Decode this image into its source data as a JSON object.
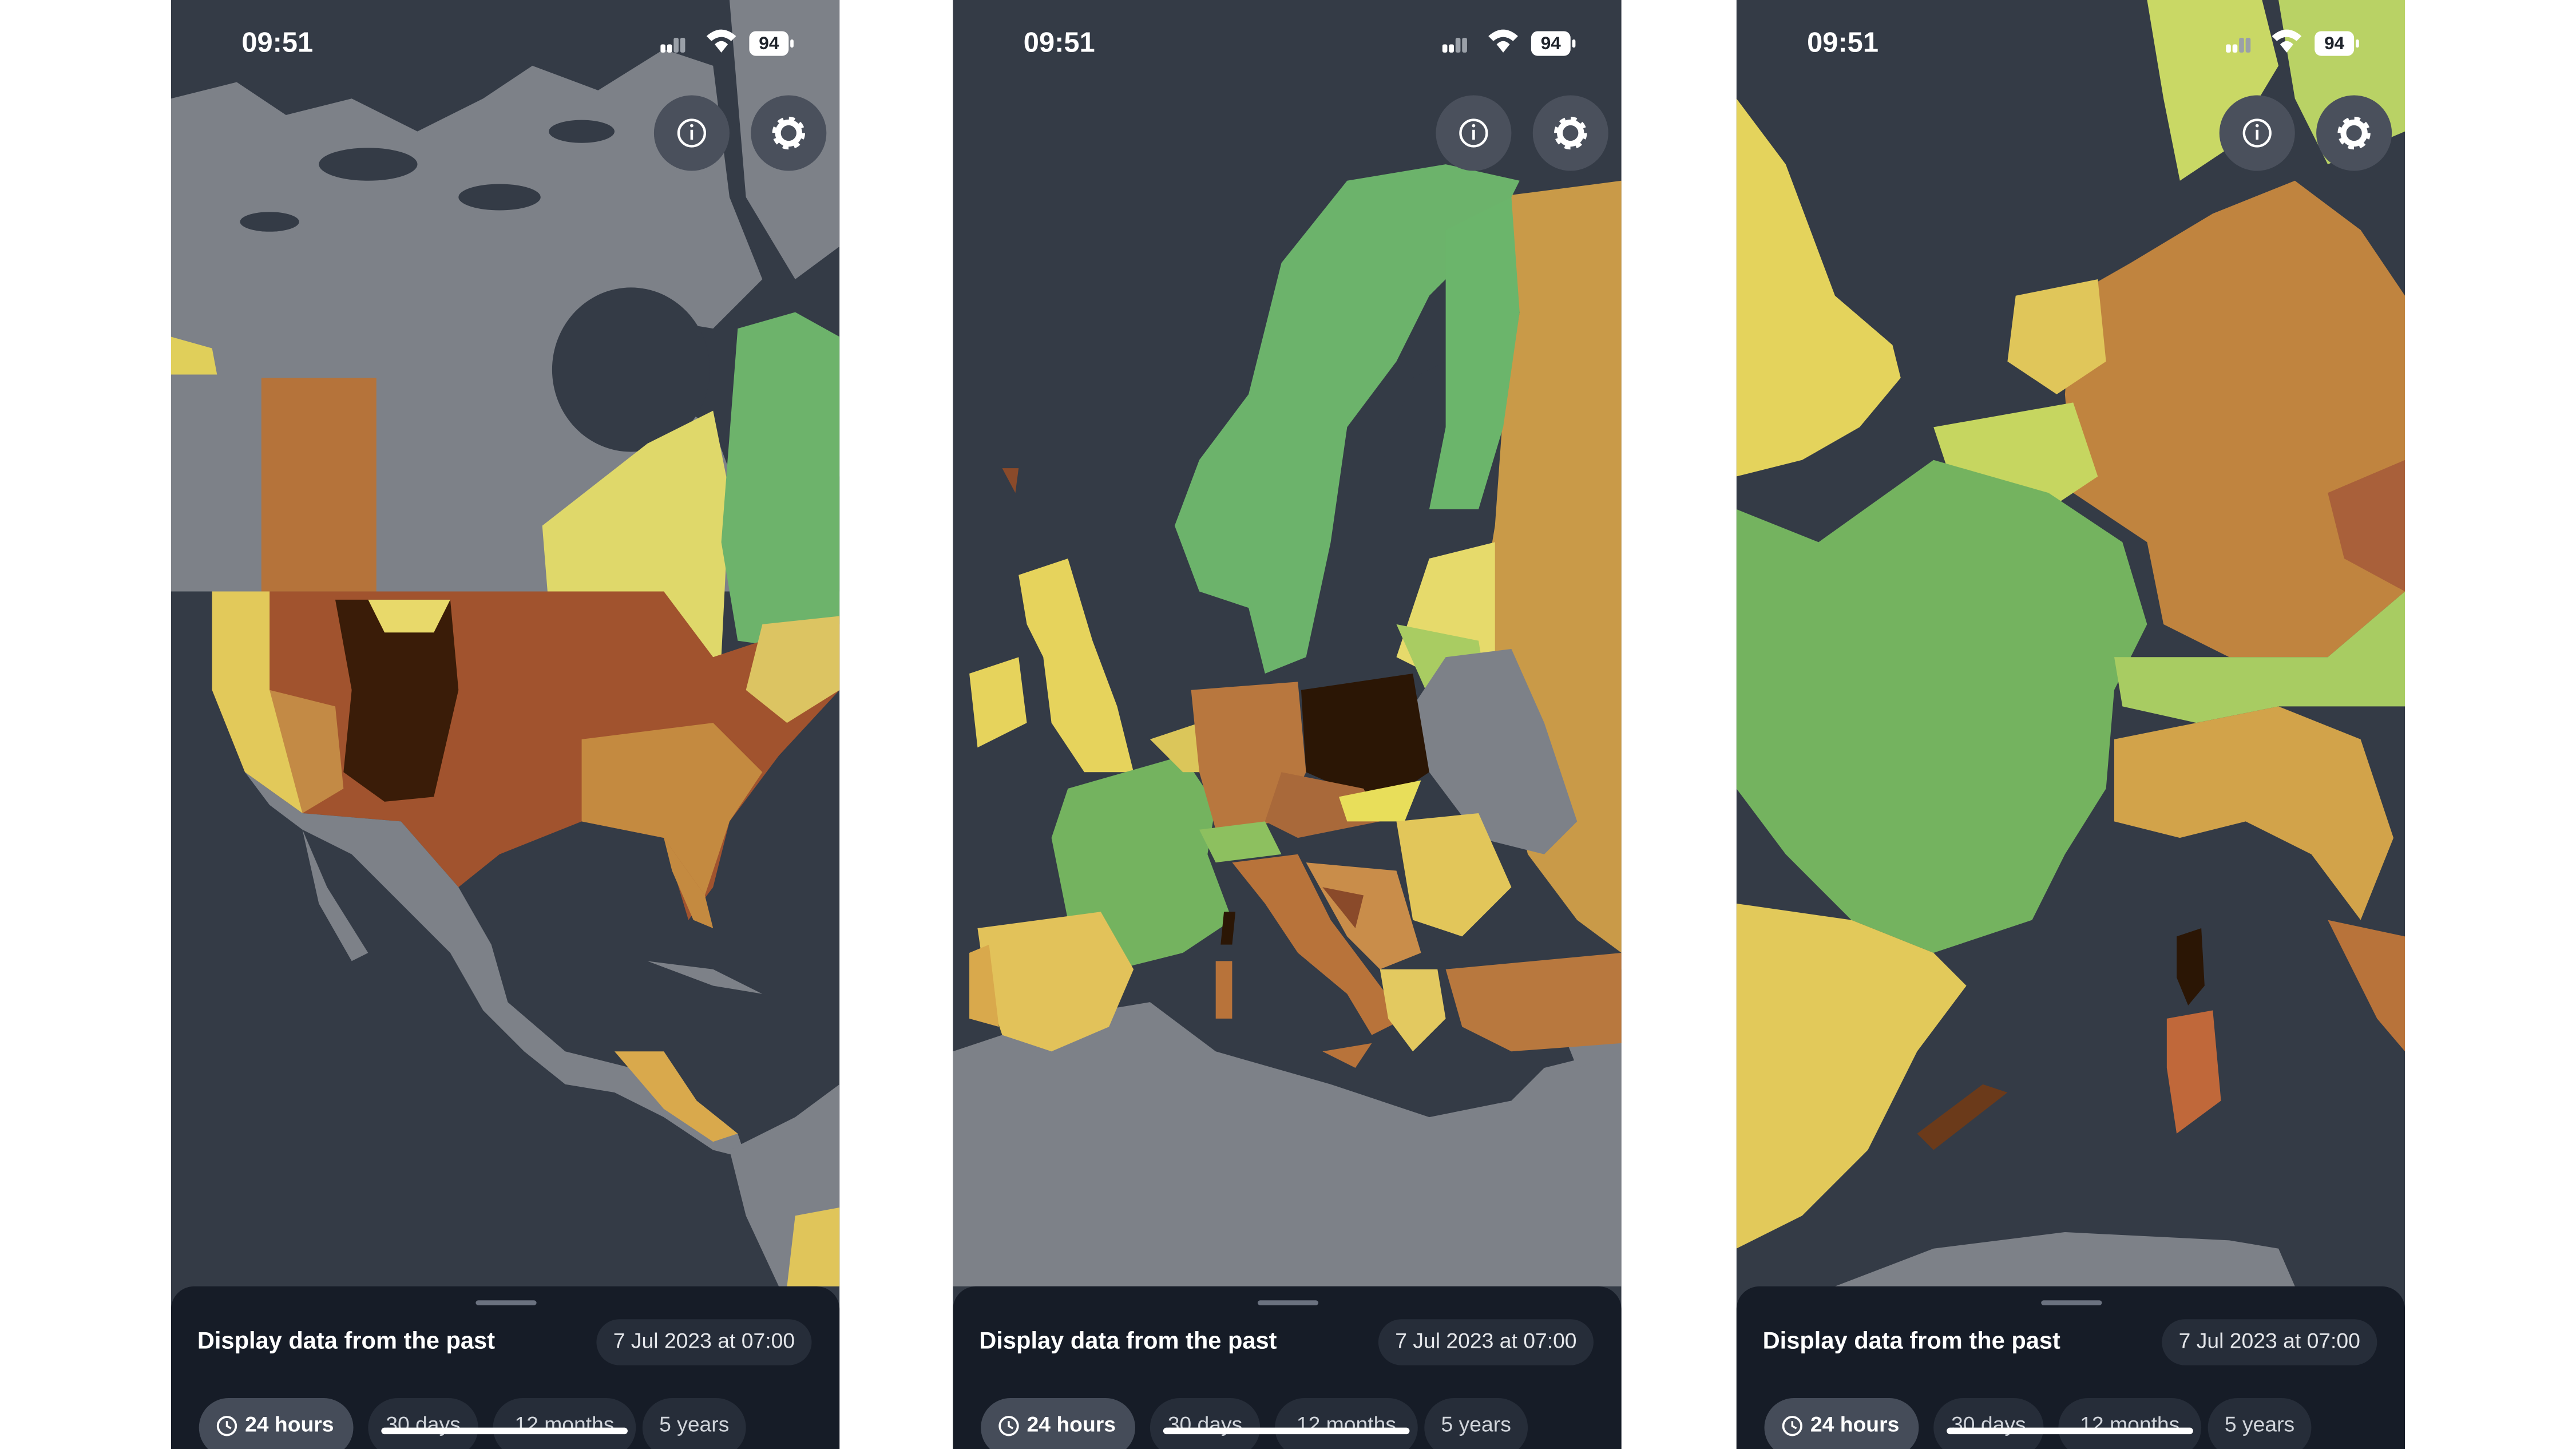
{
  "phones": [
    {
      "status": {
        "time": "09:51",
        "battery": 94
      },
      "sheet": {
        "title": "Display data from the past",
        "date": "7 Jul 2023 at 07:00",
        "ranges": [
          "24 hours",
          "30 days",
          "12 months",
          "5 years"
        ]
      }
    },
    {
      "status": {
        "time": "09:51",
        "battery": 94
      },
      "sheet": {
        "title": "Display data from the past",
        "date": "7 Jul 2023 at 07:00",
        "ranges": [
          "24 hours",
          "30 days",
          "12 months",
          "5 years"
        ]
      }
    },
    {
      "status": {
        "time": "09:51",
        "battery": 94
      },
      "sheet": {
        "title": "Display data from the past",
        "date": "7 Jul 2023 at 07:00",
        "ranges": [
          "24 hours",
          "30 days",
          "12 months",
          "5 years"
        ]
      }
    }
  ]
}
